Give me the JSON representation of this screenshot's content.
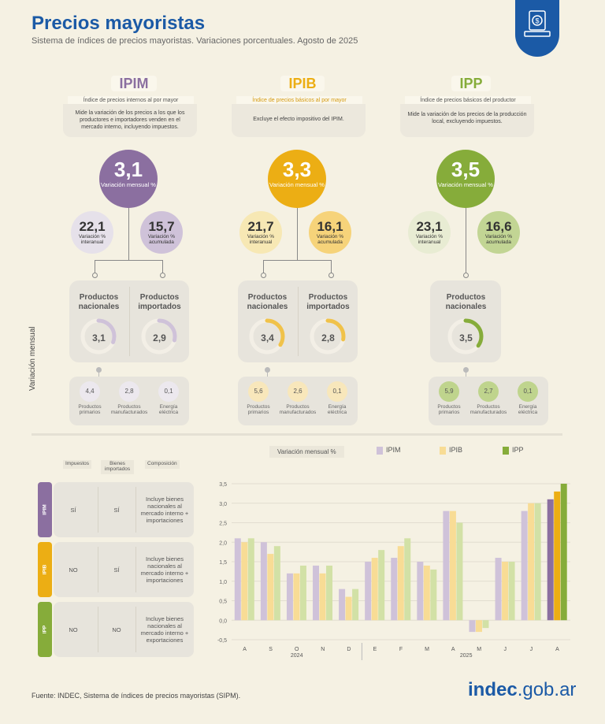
{
  "header": {
    "title": "Precios mayoristas",
    "subtitle": "Sistema de índices de precios mayoristas. Variaciones porcentuales. Agosto de 2025"
  },
  "indices": [
    {
      "code": "IPIM",
      "name": "Índice de precios internos al por mayor",
      "description": "Mide la variación de los precios a los que los productores e importadores venden en el mercado interno, incluyendo impuestos.",
      "monthly": "3,1",
      "monthly_label": "Variación mensual %",
      "interannual": "22,1",
      "interannual_label": "Variación % interanual",
      "accumulated": "15,7",
      "accumulated_label": "Variación % acumulada",
      "products": [
        {
          "label": "Productos nacionales",
          "value": "3,1",
          "fill": 0.31
        },
        {
          "label": "Productos importados",
          "value": "2,9",
          "fill": 0.29
        }
      ],
      "subcomponents": [
        {
          "value": "4,4",
          "label": "Productos primarios"
        },
        {
          "value": "2,8",
          "label": "Productos manufacturados"
        },
        {
          "value": "0,1",
          "label": "Energía eléctrica"
        }
      ]
    },
    {
      "code": "IPIB",
      "name": "Índice de precios básicos al por mayor",
      "description": "Excluye el efecto impositivo del IPIM.",
      "monthly": "3,3",
      "monthly_label": "Variación mensual %",
      "interannual": "21,7",
      "interannual_label": "Variación % interanual",
      "accumulated": "16,1",
      "accumulated_label": "Variación % acumulada",
      "products": [
        {
          "label": "Productos nacionales",
          "value": "3,4",
          "fill": 0.34
        },
        {
          "label": "Productos importados",
          "value": "2,8",
          "fill": 0.28
        }
      ],
      "subcomponents": [
        {
          "value": "5,6",
          "label": "Productos primarios"
        },
        {
          "value": "2,6",
          "label": "Productos manufacturados"
        },
        {
          "value": "0,1",
          "label": "Energía eléctrica"
        }
      ]
    },
    {
      "code": "IPP",
      "name": "Índice de precios básicos del productor",
      "description": "Mide la variación de los precios de la producción local, excluyendo impuestos.",
      "monthly": "3,5",
      "monthly_label": "Variación mensual %",
      "interannual": "23,1",
      "interannual_label": "Variación % interanual",
      "accumulated": "16,6",
      "accumulated_label": "Variación % acumulada",
      "products": [
        {
          "label": "Productos nacionales",
          "value": "3,5",
          "fill": 0.35
        }
      ],
      "subcomponents": [
        {
          "value": "5,9",
          "label": "Productos primarios"
        },
        {
          "value": "2,7",
          "label": "Productos manufacturados"
        },
        {
          "value": "0,1",
          "label": "Energía eléctrica"
        }
      ]
    }
  ],
  "side_label": "Variación mensual",
  "table": {
    "headers": [
      "Impuestos",
      "Bienes importados",
      "Composición"
    ],
    "rows": [
      {
        "index": "IPIM",
        "taxes": "SÍ",
        "imported": "SÍ",
        "composition": "Incluye bienes nacionales al mercado interno + importaciones"
      },
      {
        "index": "IPIB",
        "taxes": "NO",
        "imported": "SÍ",
        "composition": "Incluye bienes nacionales al mercado interno + importaciones"
      },
      {
        "index": "IPP",
        "taxes": "NO",
        "imported": "NO",
        "composition": "Incluye bienes nacionales al mercado interno + exportaciones"
      }
    ]
  },
  "colors": {
    "IPIM": "#8b6fa0",
    "IPIB": "#ecae14",
    "IPP": "#86ac3a",
    "IPIM_light": "#cfc2d9",
    "IPIB_light": "#f8dc95",
    "IPP_light": "#d2e1a6",
    "brand": "#1b5aa6"
  },
  "chart_data": {
    "type": "bar",
    "title": "Variación mensual %",
    "categories": [
      "A",
      "S",
      "O",
      "N",
      "D",
      "E",
      "F",
      "M",
      "A",
      "M",
      "J",
      "J",
      "A"
    ],
    "group_labels": [
      "2024",
      "2025"
    ],
    "group_split_index": 5,
    "series": [
      {
        "name": "IPIM",
        "values": [
          2.1,
          2.0,
          1.2,
          1.4,
          0.8,
          1.5,
          1.6,
          1.5,
          2.8,
          -0.3,
          1.6,
          2.8,
          3.1
        ]
      },
      {
        "name": "IPIB",
        "values": [
          2.0,
          1.7,
          1.2,
          1.2,
          0.6,
          1.6,
          1.9,
          1.4,
          2.8,
          -0.3,
          1.5,
          3.0,
          3.3
        ]
      },
      {
        "name": "IPP",
        "values": [
          2.1,
          1.9,
          1.4,
          1.4,
          0.8,
          1.8,
          2.1,
          1.3,
          2.5,
          -0.2,
          1.5,
          3.0,
          3.5
        ]
      }
    ],
    "yticks": [
      "3,5",
      "3,0",
      "2,5",
      "2,0",
      "1,5",
      "1,0",
      "0,5",
      "0,0",
      "-0,5"
    ],
    "ylim": [
      -0.5,
      3.5
    ],
    "grid": true,
    "legend": "top"
  },
  "source": "Fuente: INDEC, Sistema de índices de precios mayoristas (SIPM).",
  "logo": {
    "bold": "indec",
    "rest": ".gob.ar"
  }
}
